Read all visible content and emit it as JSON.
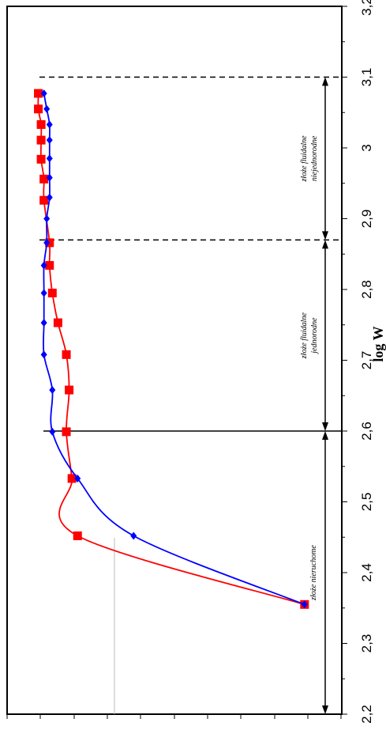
{
  "chart_data": {
    "type": "line",
    "orientation": "rotated-90",
    "title": "",
    "xlabel": "log W",
    "ylabel": "",
    "xlim": [
      2.2,
      3.2
    ],
    "x_ticks": [
      "2,2",
      "2,3",
      "2,4",
      "2,5",
      "2,6",
      "2,7",
      "2,8",
      "2,9",
      "3",
      "3,1",
      "3,2"
    ],
    "ylim": [
      0,
      1
    ],
    "grid": false,
    "legend": "none",
    "colors": {
      "red": "#ff0000",
      "blue": "#0000ff"
    },
    "series": [
      {
        "color": "red",
        "marker": "square",
        "x": [
          2.355,
          2.452,
          2.533,
          2.599,
          2.658,
          2.708,
          2.753,
          2.795,
          2.834,
          2.866,
          2.926,
          2.956,
          2.984,
          3.011,
          3.033,
          3.055,
          3.077
        ],
        "y": [
          0.04,
          0.85,
          0.87,
          0.89,
          0.88,
          0.89,
          0.92,
          0.94,
          0.95,
          0.95,
          0.97,
          0.97,
          0.98,
          0.98,
          0.98,
          0.99,
          0.99
        ]
      },
      {
        "color": "blue",
        "marker": "diamond",
        "x": [
          2.355,
          2.452,
          2.533,
          2.599,
          2.658,
          2.708,
          2.753,
          2.795,
          2.834,
          2.866,
          2.9,
          2.93,
          2.958,
          2.985,
          3.011,
          3.033,
          3.055,
          3.077
        ],
        "y": [
          0.04,
          0.65,
          0.85,
          0.94,
          0.94,
          0.97,
          0.97,
          0.97,
          0.97,
          0.96,
          0.96,
          0.95,
          0.95,
          0.95,
          0.95,
          0.95,
          0.96,
          0.97
        ]
      }
    ],
    "reference_lines": [
      {
        "x": 2.6,
        "style": "solid"
      },
      {
        "x": 2.87,
        "style": "dashed"
      },
      {
        "x": 3.1,
        "style": "dashed"
      }
    ],
    "zones": [
      {
        "from": 2.2,
        "to": 2.6,
        "label": "złoże nieruchome"
      },
      {
        "from": 2.6,
        "to": 2.87,
        "label": "złoże fluidalne jednorodne"
      },
      {
        "from": 2.87,
        "to": 3.1,
        "label": "złoże fluidalne niejednorodne"
      }
    ]
  }
}
